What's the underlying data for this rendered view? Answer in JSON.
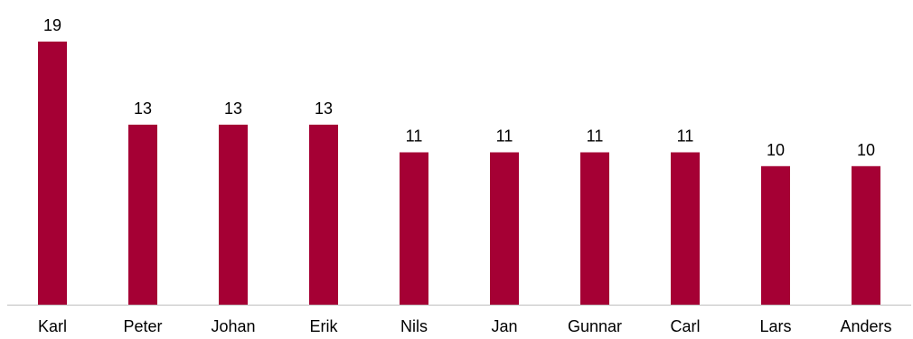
{
  "chart_data": {
    "type": "bar",
    "categories": [
      "Karl",
      "Peter",
      "Johan",
      "Erik",
      "Nils",
      "Jan",
      "Gunnar",
      "Carl",
      "Lars",
      "Anders"
    ],
    "values": [
      19,
      13,
      13,
      13,
      11,
      11,
      11,
      11,
      10,
      10
    ],
    "ylim": [
      0,
      19
    ],
    "grid": false,
    "legend": "none",
    "bar_color": "#A50034",
    "axis_color": "#BFBFBF",
    "data_labels": true
  }
}
